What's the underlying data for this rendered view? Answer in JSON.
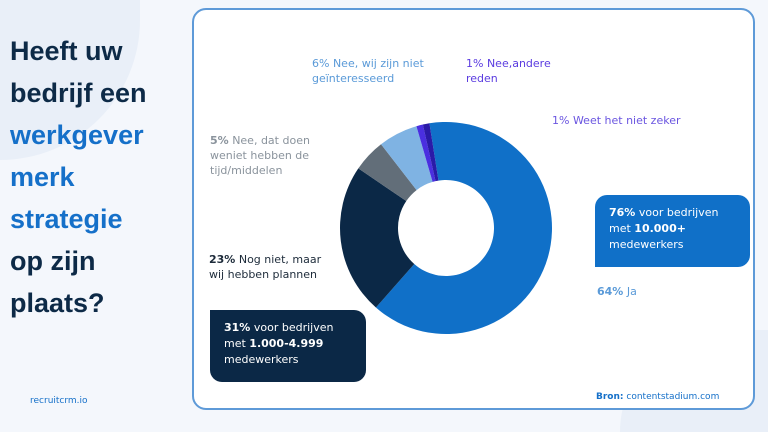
{
  "headline": {
    "line1": "Heeft uw",
    "line2": "bedrijf een",
    "line3": "werkgever",
    "line4": "merk",
    "line5": "strategie",
    "line6": "op zijn",
    "line7": "plaats?"
  },
  "brand": "recruitcrm.io",
  "colors": {
    "accent": "#1570c9",
    "dark": "#0b2846"
  },
  "chart_data": {
    "type": "pie",
    "donut": true,
    "slices": [
      {
        "pct": "64%",
        "label": "Ja",
        "value": 64,
        "color": "#1070c8"
      },
      {
        "pct": "23%",
        "label": "Nog niet, maar wij hebben plannen",
        "value": 23,
        "color": "#0b2846"
      },
      {
        "pct": "5%",
        "label": "Nee, dat doen weniet hebben de tijd/middelen",
        "value": 5,
        "color": "#626e79"
      },
      {
        "pct": "6%",
        "label": "Nee, wij zijn niet geïnteresseerd",
        "value": 6,
        "color": "#7fb3e3"
      },
      {
        "pct": "1%",
        "label": "Nee,andere reden",
        "value": 1,
        "color": "#4a2fe0"
      },
      {
        "pct": "1%",
        "label": "Weet het niet zeker",
        "value": 1,
        "color": "#2a1aa8"
      }
    ],
    "callouts": [
      {
        "pct": "76%",
        "text": "voor bedrijven met",
        "bold": "10.000+",
        "tail": "medewerkers"
      },
      {
        "pct": "31%",
        "text": "voor bedrijven met",
        "bold": "1.000-4.999",
        "tail": "medewerkers"
      }
    ]
  },
  "source": {
    "label": "Bron:",
    "value": "contentstadium.com"
  }
}
